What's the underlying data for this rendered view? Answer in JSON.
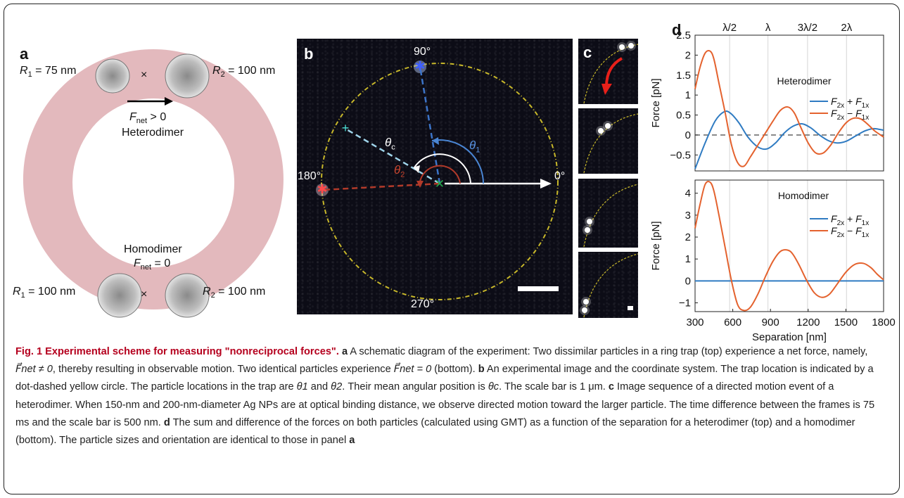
{
  "panel_a": {
    "letter": "a",
    "r1_top": "R",
    "r1_top_sub": "1",
    "r1_top_val": " = 75 nm",
    "r2_top": "R",
    "r2_top_sub": "2",
    "r2_top_val": " = 100 nm",
    "times": "×",
    "fnet_top": "F",
    "fnet_top_sub": "net",
    "fnet_top_val": " > 0",
    "heterodimer": "Heterodimer",
    "homodimer": "Homodimer",
    "fnet_bot": "F",
    "fnet_bot_sub": "net",
    "fnet_bot_val": " = 0",
    "r1_bot": "R",
    "r1_bot_sub": "1",
    "r1_bot_val": " = 100 nm",
    "r2_bot": "R",
    "r2_bot_sub": "2",
    "r2_bot_val": " = 100 nm"
  },
  "panel_b": {
    "letter": "b",
    "deg90": "90°",
    "deg180": "180°",
    "deg0": "0°",
    "deg270": "270°",
    "theta_c": "θ",
    "theta_c_sub": "c",
    "theta_1": "θ",
    "theta_1_sub": "1",
    "theta_2": "θ",
    "theta_2_sub": "2"
  },
  "panel_c": {
    "letter": "c"
  },
  "panel_d": {
    "letter": "d",
    "top_labels": [
      "λ/2",
      "λ",
      "3λ/2",
      "2λ"
    ],
    "top_title": "Heterodimer",
    "bottom_title": "Homodimer",
    "ylabel": "Force [pN]",
    "xlabel": "Separation [nm]",
    "legend_sum": "F2x + F1x",
    "legend_diff": "F2x − F1x"
  },
  "chart_data": [
    {
      "type": "line",
      "title": "Heterodimer",
      "xlabel": "Separation [nm]",
      "ylabel": "Force [pN]",
      "xlim": [
        300,
        1800
      ],
      "ylim": [
        -0.9,
        2.5
      ],
      "yticks": [
        -0.5,
        0,
        0.5,
        1,
        1.5,
        2,
        2.5
      ],
      "top_ticks": {
        "labels": [
          "λ/2",
          "λ",
          "3λ/2",
          "2λ"
        ],
        "x": [
          575,
          880,
          1195,
          1505
        ]
      },
      "legend": "right",
      "grid": "vertical-only",
      "series": [
        {
          "name": "F2x + F1x",
          "color": "#2f7bc2",
          "x": [
            300,
            380,
            460,
            530,
            580,
            650,
            720,
            800,
            870,
            940,
            1010,
            1080,
            1150,
            1220,
            1290,
            1360,
            1430,
            1500,
            1580,
            1650,
            1720,
            1800
          ],
          "y": [
            -0.85,
            -0.2,
            0.35,
            0.58,
            0.55,
            0.3,
            -0.05,
            -0.3,
            -0.35,
            -0.2,
            0.05,
            0.22,
            0.28,
            0.18,
            0.0,
            -0.14,
            -0.2,
            -0.16,
            -0.02,
            0.1,
            0.16,
            0.12
          ]
        },
        {
          "name": "F2x − F1x",
          "color": "#e4622e",
          "x": [
            300,
            340,
            380,
            420,
            450,
            490,
            540,
            590,
            640,
            690,
            740,
            800,
            860,
            920,
            980,
            1040,
            1090,
            1140,
            1200,
            1260,
            1320,
            1380,
            1440,
            1500,
            1560,
            1620,
            1680,
            1730,
            1800
          ],
          "y": [
            1.15,
            1.7,
            2.05,
            2.1,
            1.9,
            1.3,
            0.55,
            -0.25,
            -0.7,
            -0.78,
            -0.55,
            -0.25,
            0.05,
            0.35,
            0.62,
            0.7,
            0.55,
            0.2,
            -0.2,
            -0.45,
            -0.45,
            -0.25,
            0.05,
            0.3,
            0.42,
            0.4,
            0.25,
            0.1,
            -0.05
          ]
        }
      ]
    },
    {
      "type": "line",
      "title": "Homodimer",
      "xlabel": "Separation [nm]",
      "ylabel": "Force [pN]",
      "xlim": [
        300,
        1800
      ],
      "ylim": [
        -1.4,
        4.6
      ],
      "yticks": [
        -1,
        0,
        1,
        2,
        3,
        4
      ],
      "xticks": [
        300,
        600,
        900,
        1200,
        1500,
        1800
      ],
      "legend": "right",
      "grid": "vertical-only",
      "series": [
        {
          "name": "F2x + F1x",
          "color": "#2f7bc2",
          "x": [
            300,
            1800
          ],
          "y": [
            0,
            0
          ]
        },
        {
          "name": "F2x − F1x",
          "color": "#e4622e",
          "x": [
            300,
            340,
            380,
            420,
            450,
            490,
            540,
            590,
            640,
            690,
            740,
            800,
            860,
            920,
            980,
            1040,
            1080,
            1130,
            1190,
            1250,
            1310,
            1370,
            1430,
            1500,
            1570,
            1640,
            1700,
            1750,
            1800
          ],
          "y": [
            2.4,
            3.5,
            4.4,
            4.5,
            4.1,
            3.0,
            1.5,
            0.0,
            -1.1,
            -1.35,
            -1.2,
            -0.6,
            0.2,
            0.9,
            1.35,
            1.4,
            1.2,
            0.7,
            0.0,
            -0.55,
            -0.75,
            -0.6,
            -0.15,
            0.4,
            0.75,
            0.8,
            0.6,
            0.3,
            0.05
          ]
        }
      ]
    }
  ],
  "caption": {
    "title": "Fig. 1 Experimental scheme for measuring \"nonreciprocal forces\".",
    "a_label": "a",
    "a_text": " A schematic diagram of the experiment: Two dissimilar particles in a ring trap (top) experience a net force, namely, ",
    "a_eq1": "F⃗net ≠ 0",
    "a_text2": ", thereby resulting in observable motion. Two identical particles experience ",
    "a_eq2": "F⃗net = 0",
    "a_text3": " (bottom). ",
    "b_label": "b",
    "b_text": " An experimental image and the coordinate system. The trap location is indicated by a dot-dashed yellow circle. The particle locations in the trap are ",
    "b_t1": "θ1",
    "b_and": " and ",
    "b_t2": "θ2",
    "b_text2": ". Their mean angular position is ",
    "b_tc": "θc",
    "b_text3": ". The scale bar is 1 μm. ",
    "c_label": "c",
    "c_text": " Image sequence of a directed motion event of a heterodimer. When 150-nm and 200-nm-diameter Ag NPs are at optical binding distance, we observe directed motion toward the larger particle. The time difference between the frames is 75 ms and the scale bar is 500 nm. ",
    "d_label": "d",
    "d_text": " The sum and difference of the forces on both particles (calculated using GMT) as a function of the separation for a heterodimer (top) and a homodimer (bottom). The particle sizes and orientation are identical to those in panel ",
    "a_ref": "a"
  }
}
